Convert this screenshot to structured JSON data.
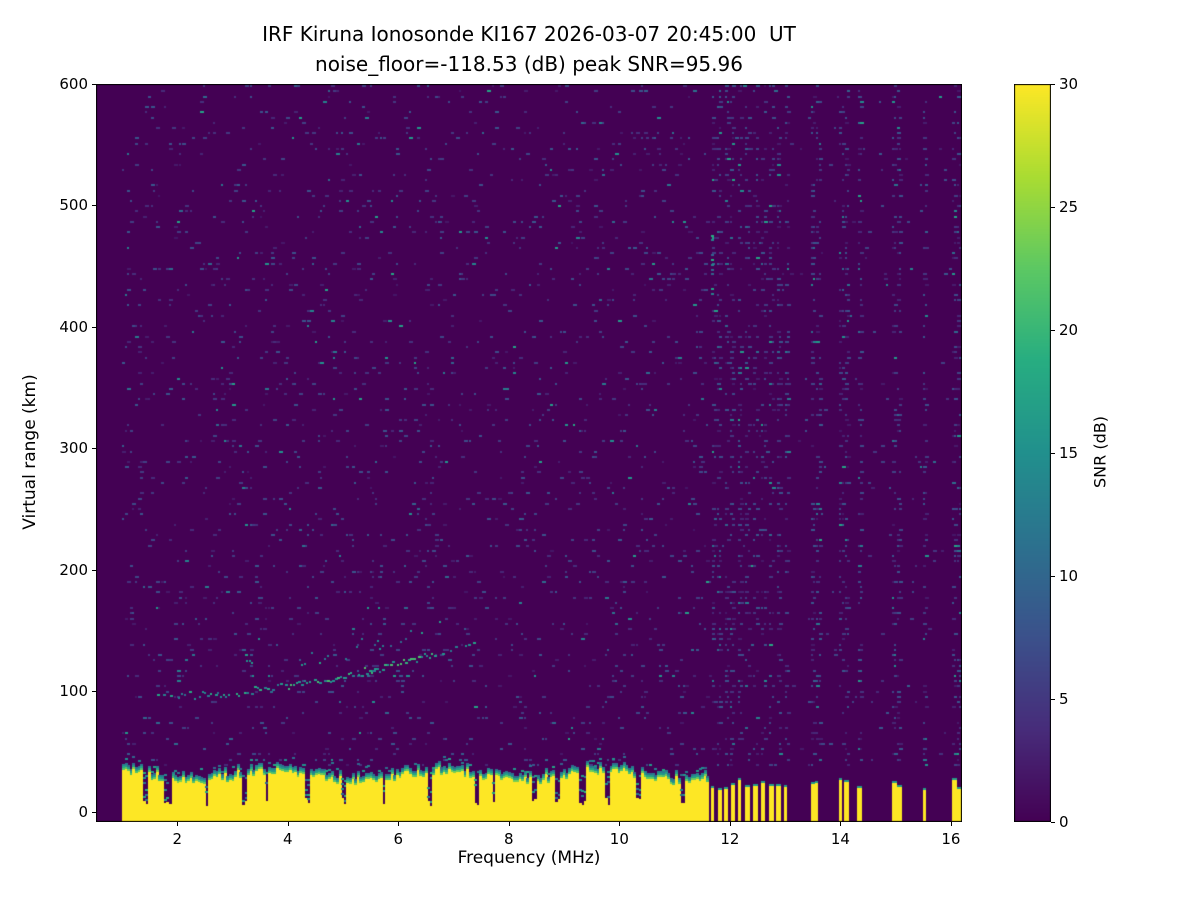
{
  "chart_data": {
    "type": "heatmap",
    "title": "IRF Kiruna Ionosonde KI167 2026-03-07 20:45:00  UT",
    "subtitle": "noise_floor=-118.53 (dB) peak SNR=95.96",
    "station": "IRF Kiruna Ionosonde KI167",
    "timestamp_ut": "2026-03-07 20:45:00 UT",
    "noise_floor_db": -118.53,
    "peak_snr_db": 95.96,
    "xlabel": "Frequency (MHz)",
    "ylabel": "Virtual range (km)",
    "xlim": [
      0.53,
      16.2
    ],
    "ylim": [
      -8,
      600
    ],
    "x_ticks": [
      2,
      4,
      6,
      8,
      10,
      12,
      14,
      16
    ],
    "y_ticks": [
      0,
      100,
      200,
      300,
      400,
      500,
      600
    ],
    "colormap": "viridis",
    "grid": false,
    "colorbar": {
      "label": "SNR (dB)",
      "ticks": [
        0,
        5,
        10,
        15,
        20,
        25,
        30
      ],
      "min": 0,
      "max": 30
    },
    "features": {
      "sweep_start_mhz": 1.0,
      "sweep_end_mhz": 16.2,
      "ground_clutter": {
        "f_range_mhz": [
          1.0,
          11.62
        ],
        "top_km_mean": 30,
        "snr_db": 30
      },
      "echo_trace": {
        "f_range_mhz": [
          1.5,
          7.45
        ],
        "range_km_start": 97,
        "range_km_end": 142,
        "snr_db_approx": 12
      },
      "second_trace": {
        "f_range_mhz": [
          3.2,
          6.8
        ],
        "offset_km": 14
      },
      "rfi_columns_mhz": [
        11.68,
        11.8,
        11.92,
        12.04,
        12.16,
        12.3,
        12.44,
        12.58,
        12.72,
        12.86,
        13.0,
        13.48,
        13.56,
        14.0,
        14.08,
        14.32,
        14.96,
        15.04,
        15.52,
        16.04,
        16.12
      ],
      "background_noise_db_range": [
        0,
        8
      ]
    }
  }
}
